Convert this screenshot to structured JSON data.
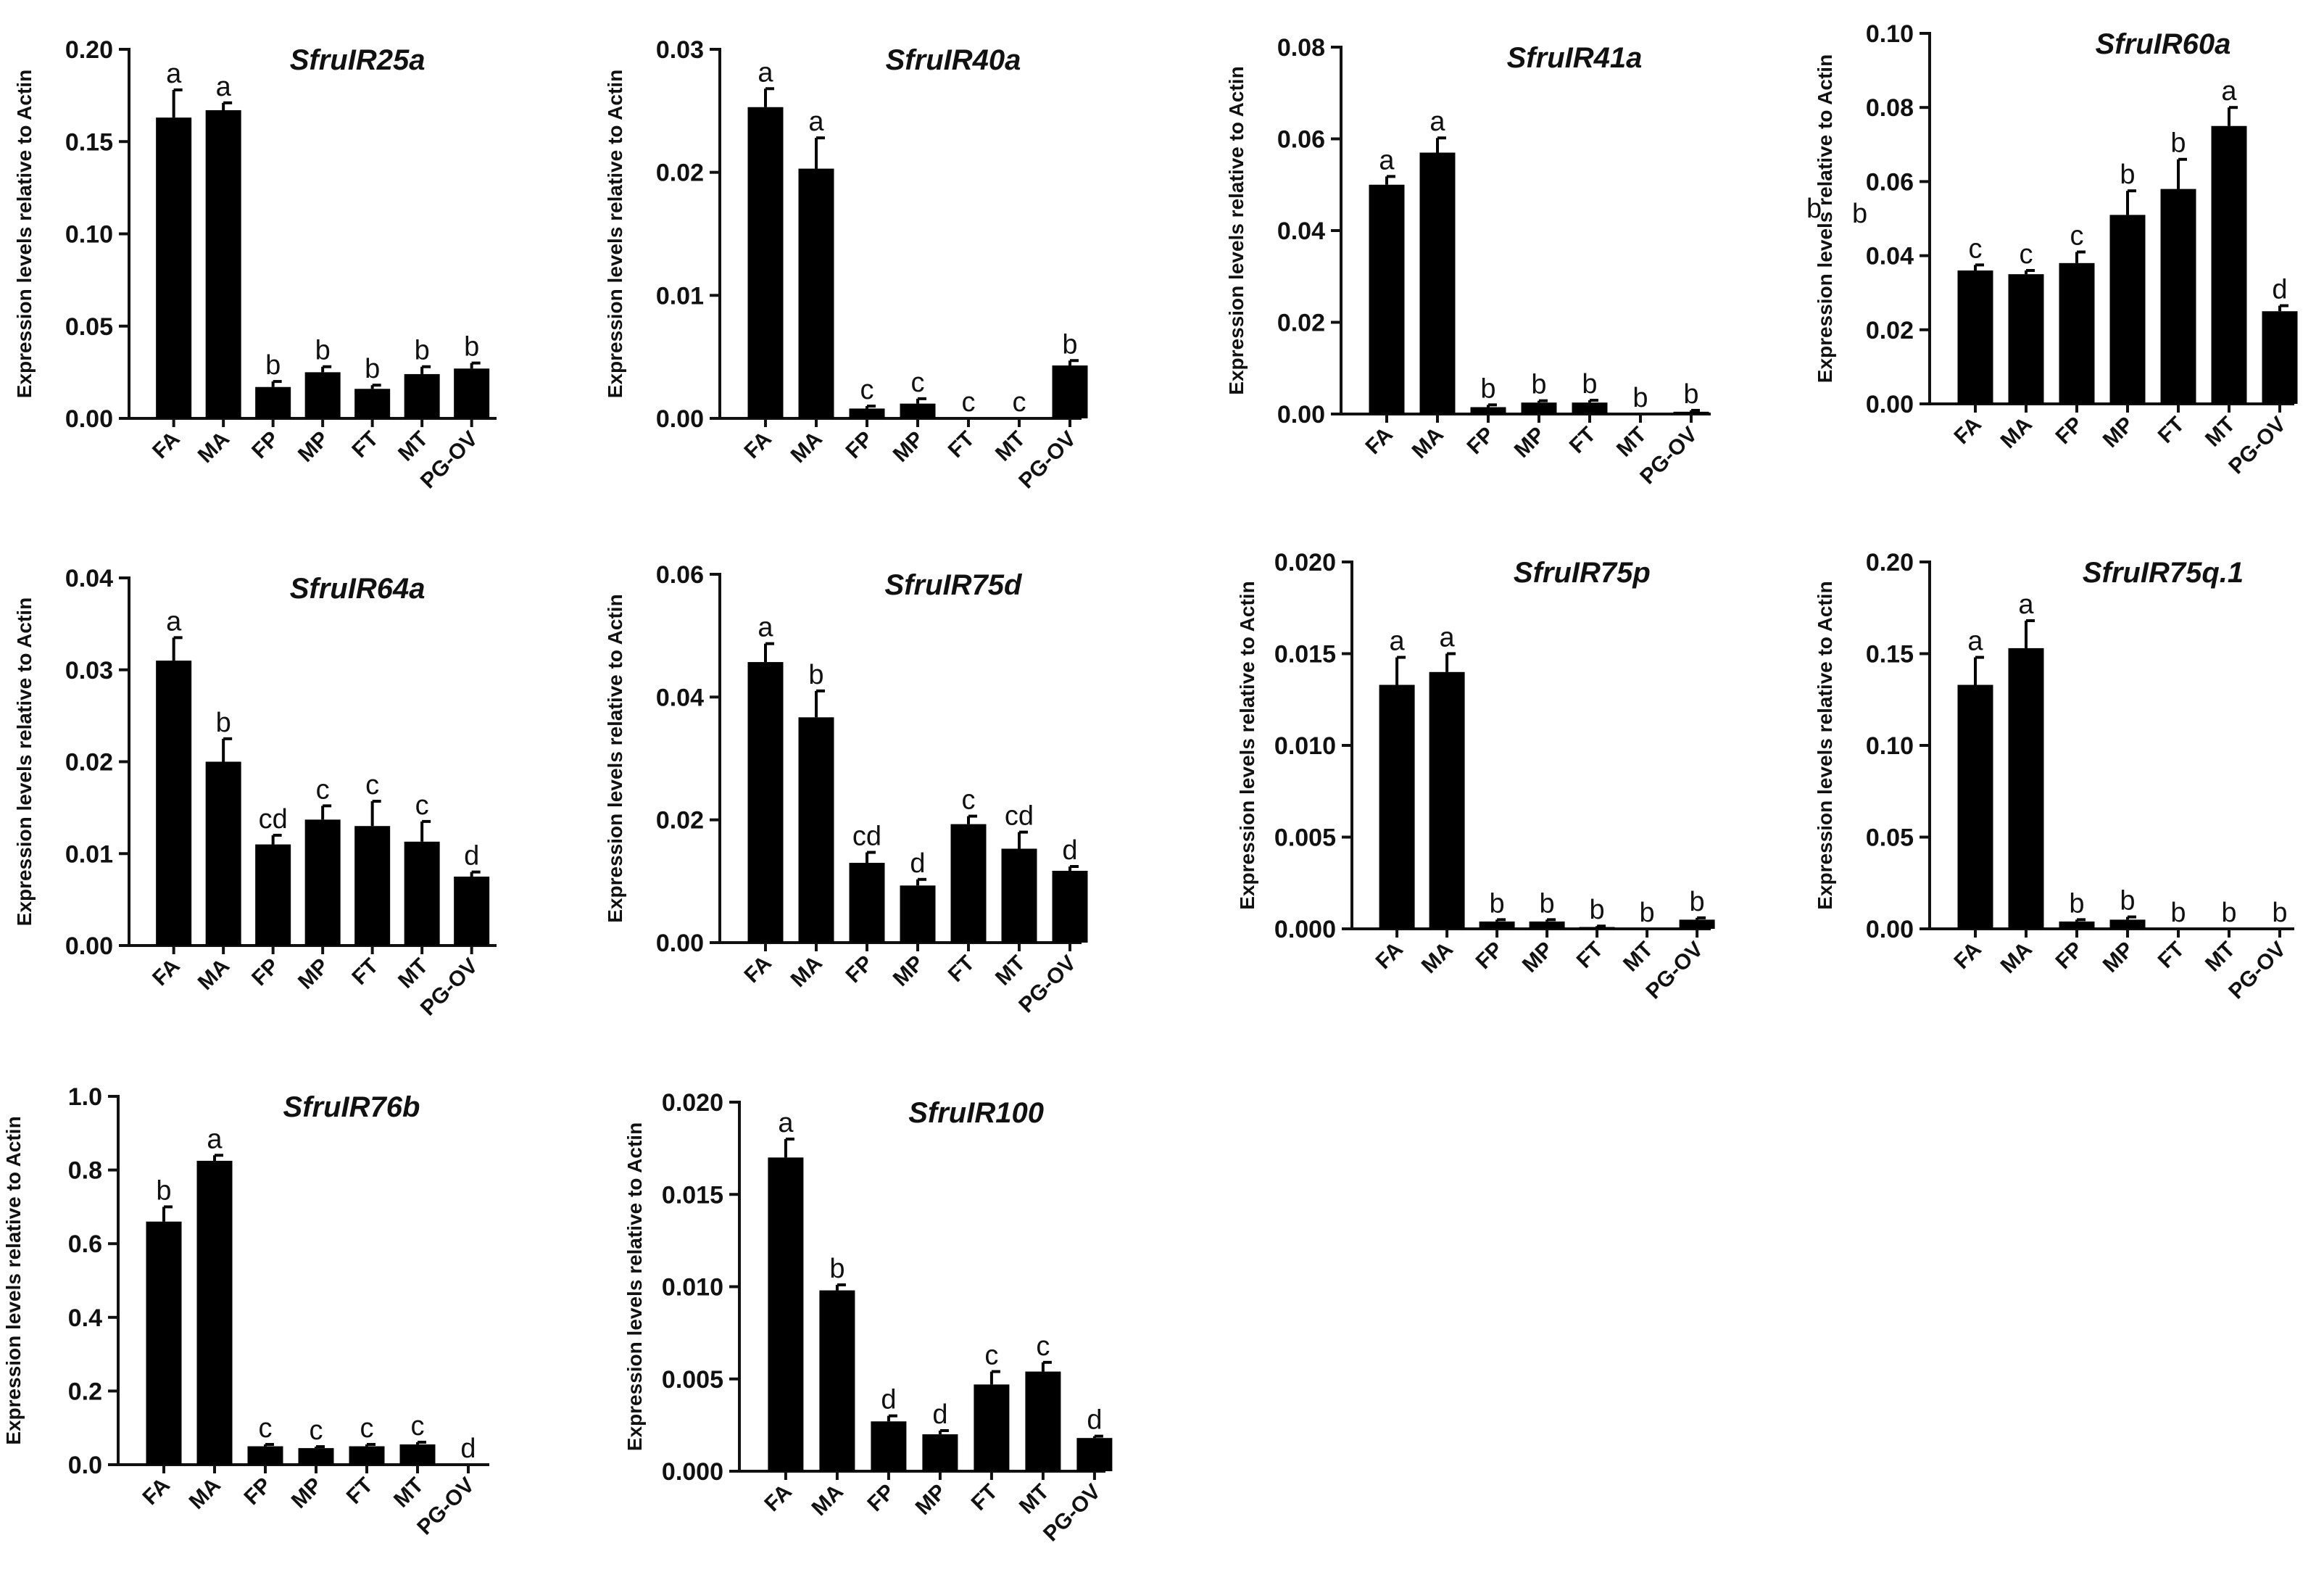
{
  "figure": {
    "ylabel": "Expression levels relative to Actin",
    "stray_letters": [
      "b",
      "b"
    ]
  },
  "chart_data": [
    {
      "type": "bar",
      "title": "SfruIR25a",
      "ylabel": "Expression levels relative to Actin",
      "categories": [
        "FA",
        "MA",
        "FP",
        "MP",
        "FT",
        "MT",
        "PG-OV"
      ],
      "values": [
        0.163,
        0.167,
        0.017,
        0.025,
        0.016,
        0.024,
        0.027
      ],
      "errors": [
        0.015,
        0.004,
        0.003,
        0.003,
        0.002,
        0.004,
        0.003
      ],
      "letters": [
        "a",
        "a",
        "b",
        "b",
        "b",
        "b",
        "b"
      ],
      "ylim": [
        0,
        0.2
      ],
      "yticks": [
        0,
        0.05,
        0.1,
        0.15,
        0.2
      ],
      "ytick_labels": [
        "0.00",
        "0.05",
        "0.10",
        "0.15",
        "0.20"
      ]
    },
    {
      "type": "bar",
      "title": "SfruIR40a",
      "ylabel": "Expression levels relative to Actin",
      "categories": [
        "FA",
        "MA",
        "FP",
        "MP",
        "FT",
        "MT",
        "PG-OV"
      ],
      "values": [
        0.0253,
        0.0203,
        0.0008,
        0.0012,
        0.0,
        0.0,
        0.0043
      ],
      "errors": [
        0.0015,
        0.0025,
        0.0002,
        0.0004,
        0.0,
        0.0,
        0.0004
      ],
      "letters": [
        "a",
        "a",
        "c",
        "c",
        "c",
        "c",
        "b"
      ],
      "ylim": [
        0,
        0.03
      ],
      "yticks": [
        0,
        0.01,
        0.02,
        0.03
      ],
      "ytick_labels": [
        "0.00",
        "0.01",
        "0.02",
        "0.03"
      ]
    },
    {
      "type": "bar",
      "title": "SfruIR41a",
      "ylabel": "Expression levels relative to Actin",
      "categories": [
        "FA",
        "MA",
        "FP",
        "MP",
        "FT",
        "MT",
        "PG-OV"
      ],
      "values": [
        0.05,
        0.057,
        0.0015,
        0.0025,
        0.0025,
        0.0,
        0.0005
      ],
      "errors": [
        0.0018,
        0.0032,
        0.0005,
        0.0004,
        0.0005,
        0.0,
        0.0003
      ],
      "letters": [
        "a",
        "a",
        "b",
        "b",
        "b",
        "b",
        "b"
      ],
      "ylim": [
        0,
        0.08
      ],
      "yticks": [
        0,
        0.02,
        0.04,
        0.06,
        0.08
      ],
      "ytick_labels": [
        "0.00",
        "0.02",
        "0.04",
        "0.06",
        "0.08"
      ]
    },
    {
      "type": "bar",
      "title": "SfruIR60a",
      "ylabel": "Expression levels relative to Actin",
      "categories": [
        "FA",
        "MA",
        "FP",
        "MP",
        "FT",
        "MT",
        "PG-OV"
      ],
      "values": [
        0.036,
        0.035,
        0.038,
        0.051,
        0.058,
        0.075,
        0.025
      ],
      "errors": [
        0.0015,
        0.001,
        0.003,
        0.0065,
        0.008,
        0.005,
        0.0015
      ],
      "letters": [
        "c",
        "c",
        "c",
        "b",
        "b",
        "a",
        "d"
      ],
      "ylim": [
        0,
        0.1
      ],
      "yticks": [
        0,
        0.02,
        0.04,
        0.06,
        0.08,
        0.1
      ],
      "ytick_labels": [
        "0.00",
        "0.02",
        "0.04",
        "0.06",
        "0.08",
        "0.10"
      ]
    },
    {
      "type": "bar",
      "title": "SfruIR64a",
      "ylabel": "Expression levels relative to Actin",
      "categories": [
        "FA",
        "MA",
        "FP",
        "MP",
        "FT",
        "MT",
        "PG-OV"
      ],
      "values": [
        0.031,
        0.02,
        0.011,
        0.0137,
        0.013,
        0.0113,
        0.0075
      ],
      "errors": [
        0.0025,
        0.0025,
        0.001,
        0.0015,
        0.0027,
        0.0022,
        0.0005
      ],
      "letters": [
        "a",
        "b",
        "cd",
        "c",
        "c",
        "c",
        "d"
      ],
      "ylim": [
        0,
        0.04
      ],
      "yticks": [
        0,
        0.01,
        0.02,
        0.03,
        0.04
      ],
      "ytick_labels": [
        "0.00",
        "0.01",
        "0.02",
        "0.03",
        "0.04"
      ]
    },
    {
      "type": "bar",
      "title": "SfruIR75d",
      "ylabel": "Expression levels relative to Actin",
      "categories": [
        "FA",
        "MA",
        "FP",
        "MP",
        "FT",
        "MT",
        "PG-OV"
      ],
      "values": [
        0.0457,
        0.0367,
        0.013,
        0.0093,
        0.0193,
        0.0153,
        0.0117
      ],
      "errors": [
        0.003,
        0.0043,
        0.0017,
        0.001,
        0.0013,
        0.0027,
        0.0007
      ],
      "letters": [
        "a",
        "b",
        "cd",
        "d",
        "c",
        "cd",
        "d"
      ],
      "ylim": [
        0,
        0.06
      ],
      "yticks": [
        0,
        0.02,
        0.04,
        0.06
      ],
      "ytick_labels": [
        "0.00",
        "0.02",
        "0.04",
        "0.06"
      ]
    },
    {
      "type": "bar",
      "title": "SfruIR75p",
      "ylabel": "Expression levels relative to Actin",
      "categories": [
        "FA",
        "MA",
        "FP",
        "MP",
        "FT",
        "MT",
        "PG-OV"
      ],
      "values": [
        0.0133,
        0.014,
        0.0004,
        0.0004,
        0.0001,
        0.0,
        0.0005
      ],
      "errors": [
        0.0015,
        0.001,
        0.0001,
        0.0001,
        5e-05,
        0.0,
        0.0001
      ],
      "letters": [
        "a",
        "a",
        "b",
        "b",
        "b",
        "b",
        "b"
      ],
      "ylim": [
        0,
        0.02
      ],
      "yticks": [
        0,
        0.005,
        0.01,
        0.015,
        0.02
      ],
      "ytick_labels": [
        "0.000",
        "0.005",
        "0.010",
        "0.015",
        "0.020"
      ]
    },
    {
      "type": "bar",
      "title": "SfruIR75q.1",
      "ylabel": "Expression levels relative to Actin",
      "categories": [
        "FA",
        "MA",
        "FP",
        "MP",
        "FT",
        "MT",
        "PG-OV"
      ],
      "values": [
        0.133,
        0.153,
        0.004,
        0.005,
        0.0,
        0.0,
        0.0
      ],
      "errors": [
        0.015,
        0.015,
        0.001,
        0.0015,
        0.0,
        0.0,
        0.0
      ],
      "letters": [
        "a",
        "a",
        "b",
        "b",
        "b",
        "b",
        "b"
      ],
      "ylim": [
        0,
        0.2
      ],
      "yticks": [
        0,
        0.05,
        0.1,
        0.15,
        0.2
      ],
      "ytick_labels": [
        "0.00",
        "0.05",
        "0.10",
        "0.15",
        "0.20"
      ]
    },
    {
      "type": "bar",
      "title": "SfruIR76b",
      "ylabel": "Expression levels relative to Actin",
      "categories": [
        "FA",
        "MA",
        "FP",
        "MP",
        "FT",
        "MT",
        "PG-OV"
      ],
      "values": [
        0.66,
        0.825,
        0.05,
        0.045,
        0.05,
        0.055,
        0.0
      ],
      "errors": [
        0.04,
        0.015,
        0.005,
        0.004,
        0.005,
        0.006,
        0.0
      ],
      "letters": [
        "b",
        "a",
        "c",
        "c",
        "c",
        "c",
        "d"
      ],
      "ylim": [
        0,
        1.0
      ],
      "yticks": [
        0,
        0.2,
        0.4,
        0.6,
        0.8,
        1.0
      ],
      "ytick_labels": [
        "0.0",
        "0.2",
        "0.4",
        "0.6",
        "0.8",
        "1.0"
      ]
    },
    {
      "type": "bar",
      "title": "SfruIR100",
      "ylabel": "Expression levels relative to Actin",
      "categories": [
        "FA",
        "MA",
        "FP",
        "MP",
        "FT",
        "MT",
        "PG-OV"
      ],
      "values": [
        0.017,
        0.0098,
        0.0027,
        0.002,
        0.0047,
        0.0054,
        0.0018
      ],
      "errors": [
        0.001,
        0.0003,
        0.0003,
        0.0002,
        0.0007,
        0.0005,
        0.0001
      ],
      "letters": [
        "a",
        "b",
        "d",
        "d",
        "c",
        "c",
        "d"
      ],
      "ylim": [
        0,
        0.02
      ],
      "yticks": [
        0,
        0.005,
        0.01,
        0.015,
        0.02
      ],
      "ytick_labels": [
        "0.000",
        "0.005",
        "0.010",
        "0.015",
        "0.020"
      ]
    }
  ]
}
